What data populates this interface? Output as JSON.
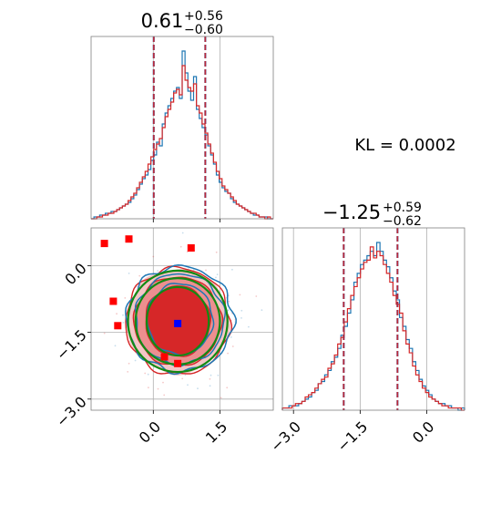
{
  "chart_data": {
    "type": "corner",
    "colors": {
      "blue": "#1f77b4",
      "red": "#d62728",
      "green": "#138a13",
      "marker_red": "#ff0000",
      "marker_blue": "#0000ff"
    },
    "x1_title": {
      "main": "0.61",
      "sup": "+0.56",
      "sub": "−0.60"
    },
    "x2_title": {
      "main": "−1.25",
      "sup": "+0.59",
      "sub": "−0.62"
    },
    "annotation": "KL = 0.0002",
    "x1_ticks": [
      0.0,
      1.5
    ],
    "x1_ticklabels": [
      "0.0",
      "1.5"
    ],
    "x2_ticks": [
      -3.0,
      -1.5,
      0.0
    ],
    "x2_ticklabels": [
      "−3.0",
      "−1.5",
      "0.0"
    ],
    "x1_range": [
      -1.4,
      2.7
    ],
    "x2_range": [
      -3.25,
      0.85
    ],
    "x1_quantiles": [
      0.01,
      1.17
    ],
    "x2_quantiles": [
      -1.87,
      -0.66
    ],
    "red_markers": [
      [
        -1.1,
        0.5
      ],
      [
        -0.55,
        0.6
      ],
      [
        0.85,
        0.4
      ],
      [
        -0.9,
        -0.8
      ],
      [
        -0.8,
        -1.35
      ],
      [
        0.25,
        -2.05
      ],
      [
        0.55,
        -2.2
      ]
    ],
    "blue_marker": [
      0.55,
      -1.3
    ],
    "hist1_edges": [
      -1.4,
      2.7
    ],
    "hist1_blue": [
      0,
      1,
      1,
      2,
      2,
      3,
      3,
      4,
      4,
      5,
      6,
      7,
      8,
      9,
      11,
      13,
      16,
      19,
      22,
      24,
      27,
      32,
      35,
      42,
      40,
      52,
      58,
      62,
      66,
      70,
      72,
      66,
      92,
      80,
      70,
      65,
      78,
      60,
      55,
      50,
      46,
      40,
      35,
      30,
      24,
      20,
      17,
      15,
      14,
      11,
      9,
      8,
      7,
      6,
      5,
      4,
      3,
      2,
      2,
      1,
      1,
      1,
      0,
      0
    ],
    "hist1_red": [
      0,
      0,
      1,
      1,
      2,
      2,
      3,
      3,
      4,
      5,
      6,
      7,
      8,
      10,
      12,
      14,
      17,
      20,
      23,
      26,
      30,
      34,
      38,
      41,
      44,
      50,
      56,
      60,
      64,
      69,
      71,
      68,
      84,
      76,
      72,
      70,
      74,
      62,
      58,
      52,
      47,
      41,
      36,
      31,
      26,
      22,
      18,
      16,
      14,
      12,
      10,
      8,
      7,
      6,
      5,
      4,
      3,
      3,
      2,
      1,
      1,
      0,
      1,
      0
    ],
    "hist2_edges": [
      -3.25,
      0.85
    ],
    "hist2_blue": [
      1,
      1,
      2,
      2,
      2,
      3,
      4,
      5,
      6,
      8,
      9,
      12,
      13,
      16,
      18,
      22,
      24,
      28,
      34,
      38,
      44,
      50,
      58,
      62,
      66,
      68,
      70,
      72,
      70,
      76,
      72,
      68,
      65,
      60,
      54,
      50,
      42,
      38,
      32,
      28,
      22,
      18,
      14,
      11,
      9,
      7,
      5,
      4,
      3,
      3,
      2,
      2,
      1,
      1,
      0,
      1
    ],
    "hist2_red": [
      1,
      1,
      1,
      2,
      3,
      3,
      4,
      6,
      7,
      8,
      10,
      12,
      14,
      15,
      19,
      21,
      25,
      30,
      33,
      40,
      46,
      52,
      56,
      60,
      64,
      67,
      68,
      74,
      69,
      72,
      70,
      66,
      62,
      58,
      52,
      48,
      44,
      36,
      30,
      26,
      20,
      16,
      13,
      10,
      8,
      6,
      5,
      4,
      3,
      2,
      2,
      1,
      1,
      1,
      1,
      0
    ]
  }
}
